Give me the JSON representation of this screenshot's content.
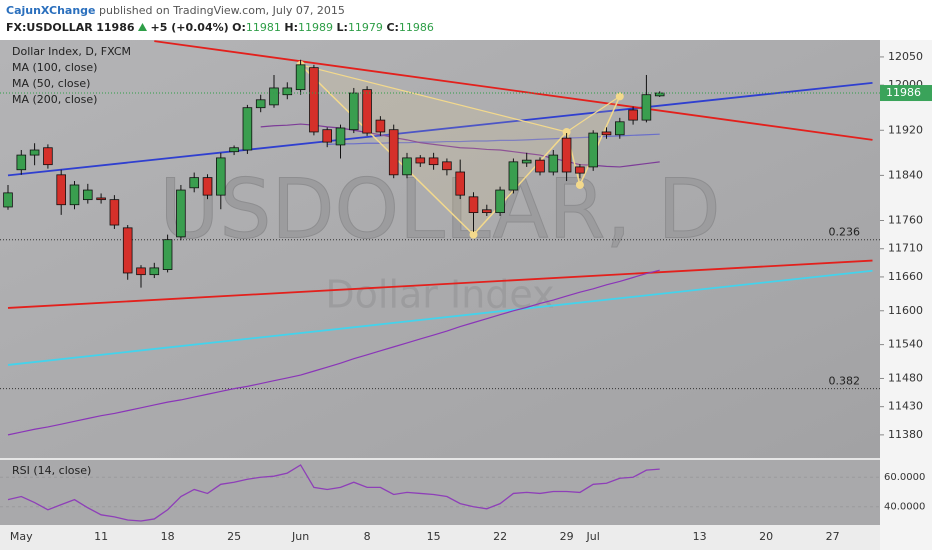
{
  "header": {
    "author": "CajunXChange",
    "published": "published on TradingView.com, July 07, 2015",
    "symbol": "FX:USDOLLAR",
    "change": "+5 (+0.04%)",
    "ohlc_labels": [
      "O:",
      "H:",
      "L:",
      "C:"
    ]
  },
  "chart_data": {
    "type": "candlestick",
    "title": "Dollar Index, D, FXCM",
    "watermark": "USDOLLAR, D",
    "watermark_subtitle": "Dollar Index",
    "categories": [
      null,
      "May",
      null,
      null,
      null,
      null,
      null,
      "11",
      null,
      null,
      null,
      null,
      "18",
      null,
      null,
      null,
      null,
      "25",
      null,
      null,
      null,
      null,
      "Jun",
      null,
      null,
      null,
      null,
      "8",
      null,
      null,
      null,
      null,
      "15",
      null,
      null,
      null,
      null,
      "22",
      null,
      null,
      null,
      null,
      "29",
      null,
      "Jul",
      null,
      null,
      null,
      null,
      null,
      null,
      null,
      "13",
      null,
      null,
      null,
      null,
      "20",
      null,
      null,
      null,
      null,
      "27",
      null,
      null,
      null
    ],
    "open": [
      11784,
      11850,
      11876,
      11889,
      11841,
      11788,
      11797,
      11800,
      11797,
      11747,
      11676,
      11664,
      11673,
      11731,
      11818,
      11836,
      11805,
      11882,
      11885,
      11960,
      11965,
      11983,
      11992,
      12031,
      11921,
      11894,
      11921,
      11992,
      11938,
      11921,
      11841,
      11871,
      11871,
      11864,
      11846,
      11802,
      11779,
      11774,
      11814,
      11862,
      11867,
      11846,
      11906,
      11855,
      11855,
      11917,
      11912,
      11956,
      11938,
      11981,
      null,
      null,
      null,
      null,
      null,
      null,
      null,
      null,
      null,
      null,
      null,
      null,
      null,
      null,
      null,
      null
    ],
    "high": [
      11823,
      11885,
      11897,
      11895,
      11850,
      11830,
      11825,
      11808,
      11805,
      11752,
      11681,
      11685,
      11735,
      11823,
      11845,
      11842,
      11880,
      11893,
      11965,
      11983,
      12018,
      12005,
      12045,
      12036,
      11925,
      11930,
      11995,
      11998,
      11945,
      11930,
      11880,
      11876,
      11880,
      11870,
      11868,
      11810,
      11788,
      11820,
      11870,
      11880,
      11872,
      11885,
      11915,
      11860,
      11920,
      11925,
      11942,
      11962,
      12018,
      11989,
      null,
      null,
      null,
      null,
      null,
      null,
      null,
      null,
      null,
      null,
      null,
      null,
      null,
      null,
      null,
      null
    ],
    "low": [
      11779,
      11841,
      11858,
      11852,
      11770,
      11780,
      11790,
      11790,
      11745,
      11655,
      11641,
      11658,
      11668,
      11725,
      11810,
      11798,
      11780,
      11876,
      11878,
      11952,
      11960,
      11975,
      11983,
      11911,
      11890,
      11870,
      11915,
      11910,
      11910,
      11835,
      11835,
      11855,
      11850,
      11840,
      11798,
      11740,
      11768,
      11768,
      11808,
      11855,
      11840,
      11840,
      11830,
      11835,
      11848,
      11905,
      11905,
      11930,
      11934,
      11979,
      null,
      null,
      null,
      null,
      null,
      null,
      null,
      null,
      null,
      null,
      null,
      null,
      null,
      null,
      null,
      null
    ],
    "close": [
      11809,
      11876,
      11885,
      11859,
      11788,
      11823,
      11814,
      11797,
      11752,
      11667,
      11664,
      11676,
      11726,
      11814,
      11836,
      11805,
      11871,
      11889,
      11960,
      11974,
      11995,
      11995,
      12036,
      11917,
      11899,
      11924,
      11986,
      11915,
      11917,
      11841,
      11871,
      11862,
      11859,
      11850,
      11805,
      11774,
      11774,
      11814,
      11864,
      11867,
      11846,
      11876,
      11846,
      11844,
      11915,
      11912,
      11935,
      11938,
      11983,
      11986,
      null,
      null,
      null,
      null,
      null,
      null,
      null,
      null,
      null,
      null,
      null,
      null,
      null,
      null,
      null,
      null
    ],
    "up_color": "#3a9e4f",
    "down_color": "#d5302a",
    "ylim": [
      11339,
      12080
    ],
    "yticks": [
      12050,
      12000,
      11920,
      11840,
      11760,
      11710,
      11660,
      11600,
      11540,
      11480,
      11430,
      11380
    ],
    "series": [
      {
        "name": "MA (100, close)",
        "color": "#6a6fc9",
        "values": [
          null,
          null,
          null,
          null,
          null,
          null,
          null,
          null,
          null,
          null,
          null,
          null,
          null,
          null,
          null,
          null,
          null,
          null,
          null,
          null,
          null,
          null,
          null,
          null,
          11895,
          11896,
          11896,
          11897,
          11897,
          11898,
          11898,
          11899,
          11899,
          11900,
          11900,
          11901,
          11901,
          11902,
          11902,
          11903,
          11904,
          11905,
          11906,
          11907,
          11908,
          11909,
          11910,
          11911,
          11912,
          11913,
          null,
          null,
          null,
          null,
          null,
          null,
          null,
          null,
          null,
          null,
          null,
          null,
          null,
          null,
          null,
          null
        ]
      },
      {
        "name": "MA (50, close)",
        "color": "#7d3c98",
        "values": [
          null,
          null,
          null,
          null,
          null,
          null,
          null,
          null,
          null,
          null,
          null,
          null,
          null,
          null,
          null,
          null,
          null,
          null,
          null,
          11926,
          11928,
          11929,
          11931,
          11929,
          11926,
          11924,
          11920,
          11916,
          11912,
          11907,
          11903,
          11898,
          11895,
          11892,
          11889,
          11888,
          11886,
          11885,
          11882,
          11879,
          11876,
          11870,
          11865,
          11859,
          11858,
          11856,
          11855,
          11858,
          11861,
          11864,
          null,
          null,
          null,
          null,
          null,
          null,
          null,
          null,
          null,
          null,
          null,
          null,
          null,
          null,
          null,
          null
        ]
      },
      {
        "name": "MA (200, close)",
        "color": "#8a35b8",
        "values": [
          11380,
          11385,
          11390,
          11394,
          11399,
          11404,
          11409,
          11414,
          11418,
          11423,
          11428,
          11433,
          11438,
          11442,
          11447,
          11452,
          11457,
          11462,
          11466,
          11471,
          11476,
          11481,
          11486,
          11493,
          11500,
          11507,
          11515,
          11522,
          11529,
          11536,
          11543,
          11550,
          11557,
          11564,
          11572,
          11579,
          11586,
          11593,
          11600,
          11606,
          11613,
          11619,
          11626,
          11633,
          11639,
          11646,
          11652,
          11659,
          11666,
          11672,
          null,
          null,
          null,
          null,
          null,
          null,
          null,
          null,
          null,
          null,
          null,
          null,
          null,
          null,
          null,
          null
        ]
      }
    ],
    "trendlines": [
      {
        "color": "#2f3fd0",
        "x": [
          0,
          65
        ],
        "y": [
          11840,
          12004
        ]
      },
      {
        "color": "#e3201c",
        "x": [
          11,
          65
        ],
        "y": [
          12078,
          11903
        ]
      },
      {
        "color": "#e3201c",
        "x": [
          0,
          65
        ],
        "y": [
          11605,
          11689
        ]
      },
      {
        "color": "#43d3ec",
        "x": [
          0,
          65
        ],
        "y": [
          11504,
          11671
        ]
      }
    ],
    "fib": [
      {
        "level": 0.236,
        "price": 11726
      },
      {
        "level": 0.382,
        "price": 11462
      }
    ],
    "pattern": {
      "color": "#f3d98c",
      "x": [
        22,
        35,
        42,
        43,
        46
      ],
      "y": [
        12036,
        11735,
        11917,
        11823,
        11980
      ]
    },
    "rsi": {
      "title": "RSI (14, close)",
      "color": "#8e3fb8",
      "ylim": [
        27.6,
        71
      ],
      "yticks": [
        {
          "value": 60,
          "label": "60.0000"
        },
        {
          "value": 40,
          "label": "40.0000"
        }
      ],
      "values": [
        44.8,
        46.9,
        42.8,
        37.9,
        41.4,
        44.8,
        39.3,
        34.5,
        33.1,
        31,
        30.3,
        31.7,
        37.9,
        46.9,
        51.7,
        49,
        55.2,
        56.6,
        58.6,
        60,
        60.7,
        62.8,
        68.3,
        53.1,
        51.7,
        53.1,
        56.6,
        53.1,
        53.1,
        48.3,
        49.7,
        49,
        48.3,
        46.9,
        42.1,
        40,
        38.6,
        42.1,
        49,
        49.7,
        49,
        50.3,
        50.3,
        49.7,
        55.2,
        55.9,
        59.3,
        60,
        64.8,
        65.5,
        null,
        null,
        null,
        null,
        null,
        null,
        null,
        null,
        null,
        null,
        null,
        null,
        null,
        null,
        null,
        null
      ]
    }
  }
}
